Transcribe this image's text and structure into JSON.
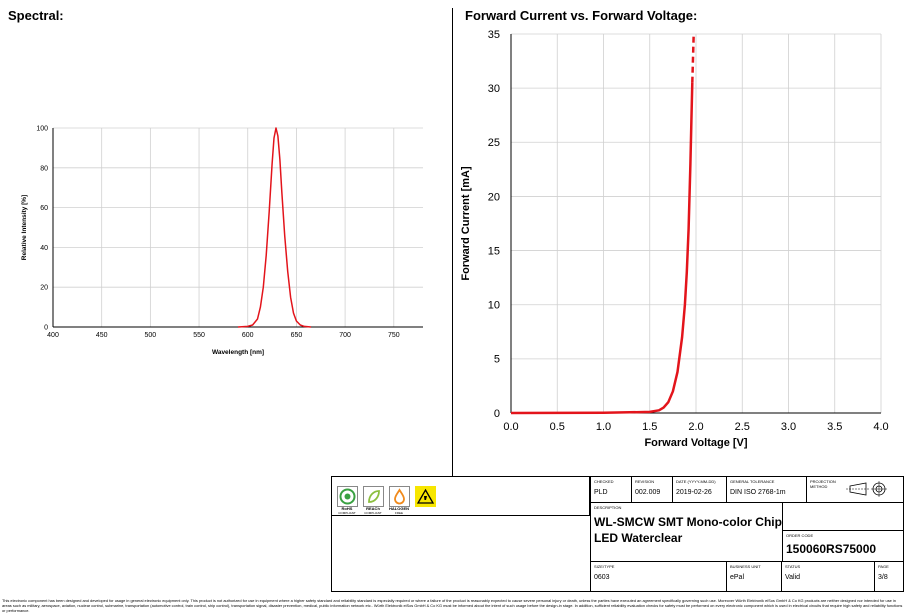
{
  "left_title": "Spectral:",
  "right_title": "Forward Current vs. Forward Voltage:",
  "chart_data": [
    {
      "type": "line",
      "title": "Spectral:",
      "xlabel": "Wavelength [nm]",
      "ylabel": "Relative Intensity [%]",
      "xlim": [
        400,
        780
      ],
      "ylim": [
        0,
        100
      ],
      "xticks": [
        400,
        450,
        500,
        550,
        600,
        650,
        700,
        750
      ],
      "yticks": [
        0,
        20,
        40,
        60,
        80,
        100
      ],
      "grid": true,
      "series": [
        {
          "color": "#e3141b",
          "x": [
            590,
            600,
            605,
            610,
            613,
            616,
            619,
            622,
            625,
            627,
            629,
            631,
            633,
            635,
            638,
            641,
            644,
            647,
            650,
            654,
            658,
            665
          ],
          "y": [
            0,
            0.3,
            1,
            4,
            10,
            20,
            36,
            58,
            82,
            95,
            100,
            96,
            84,
            68,
            46,
            28,
            15,
            7,
            3,
            1,
            0.3,
            0
          ]
        }
      ]
    },
    {
      "type": "line",
      "title": "Forward Current vs. Forward Voltage:",
      "xlabel": "Forward Voltage [V]",
      "ylabel": "Forward Current [mA]",
      "xlim": [
        0,
        4
      ],
      "ylim": [
        0,
        35
      ],
      "xticks": [
        "0.0",
        "0.5",
        "1.0",
        "1.5",
        "2.0",
        "2.5",
        "3.0",
        "3.5",
        "4.0"
      ],
      "yticks": [
        "0",
        "5",
        "10",
        "15",
        "20",
        "25",
        "30",
        "35"
      ],
      "grid": true,
      "series": [
        {
          "color": "#e3141b",
          "x": [
            0,
            1.0,
            1.5,
            1.6,
            1.65,
            1.7,
            1.75,
            1.8,
            1.85,
            1.88,
            1.9,
            1.92,
            1.94,
            1.95,
            1.96
          ],
          "y": [
            0,
            0.02,
            0.1,
            0.25,
            0.5,
            1.0,
            2.0,
            3.8,
            7.0,
            10.0,
            13.0,
            17.0,
            23.0,
            27.0,
            30.5
          ]
        },
        {
          "color": "#e3141b",
          "dashed": true,
          "x": [
            1.96,
            1.975
          ],
          "y": [
            30.5,
            35
          ]
        }
      ]
    }
  ],
  "titleblock": {
    "badges": [
      {
        "label": "RoHS",
        "sub": "COMPLIANT",
        "color": "#3aa142"
      },
      {
        "label": "REACh",
        "sub": "COMPLIANT",
        "color": "#8cbf3f"
      },
      {
        "label": "HALOGEN",
        "sub": "FREE",
        "color": "#f08a1c"
      }
    ],
    "checked_label": "CHECKED",
    "checked": "PLD",
    "revision_label": "REVISION",
    "revision": "002.009",
    "date_label": "DATE (YYYY-MM-DD)",
    "date": "2019-02-26",
    "tolerance_label": "GENERAL TOLERANCE",
    "tolerance": "DIN ISO 2768-1m",
    "projection_label": "PROJECTION METHOD",
    "description_label": "DESCRIPTION",
    "description_line1": "WL-SMCW SMT Mono-color Chip",
    "description_line2": "LED Waterclear",
    "order_label": "ORDER CODE",
    "order_code": "150060RS75000",
    "size_label": "SIZE/TYPE",
    "size": "0603",
    "business_label": "BUSINESS UNIT",
    "business": "ePal",
    "status_label": "STATUS",
    "status": "Valid",
    "page_label": "PAGE",
    "page": "3/8"
  },
  "disclaimer": "This electronic component has been designed and developed for usage in general electronic equipment only. This product is not authorized for use in equipment where a higher safety standard and reliability standard is especially required or where a failure of the product is reasonably expected to cause severe personal injury or death, unless the parties have executed an agreement specifically governing such use. Moreover Würth Elektronik eiSos GmbH & Co KG products are neither designed nor intended for use in areas such as military, aerospace, aviation, nuclear control, submarine, transportation (automotive control, train control, ship control), transportation signal, disaster prevention, medical, public information network etc.. Würth Elektronik eiSos GmbH & Co KG must be informed about the intent of such usage before the design-in stage. In addition, sufficient reliability evaluation checks for safety must be performed on every electronic component which is used in electrical circuits that require high safety and reliability functions or performance."
}
